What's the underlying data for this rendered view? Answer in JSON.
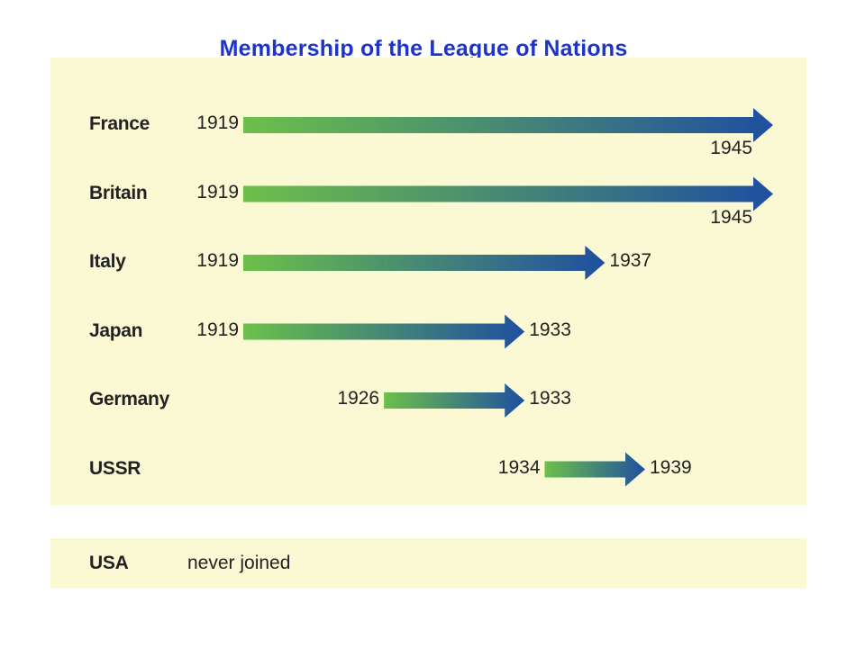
{
  "title": "Membership of the League of Nations",
  "chart_data": {
    "type": "bar",
    "title": "Membership of the League of Nations",
    "xlabel": "",
    "ylabel": "",
    "xlim": [
      1919,
      1945
    ],
    "colors": {
      "start": "#6cc04a",
      "end": "#1f4fa0",
      "panel": "#fbf9d4",
      "title": "#1f35c8"
    },
    "series": [
      {
        "country": "France",
        "joined": 1919,
        "left": 1945,
        "continues": true,
        "start_label": "1919",
        "end_label": "1945"
      },
      {
        "country": "Britain",
        "joined": 1919,
        "left": 1945,
        "continues": true,
        "start_label": "1919",
        "end_label": "1945"
      },
      {
        "country": "Italy",
        "joined": 1919,
        "left": 1937,
        "continues": false,
        "start_label": "1919",
        "end_label": "1937"
      },
      {
        "country": "Japan",
        "joined": 1919,
        "left": 1933,
        "continues": false,
        "start_label": "1919",
        "end_label": "1933"
      },
      {
        "country": "Germany",
        "joined": 1926,
        "left": 1933,
        "continues": false,
        "start_label": "1926",
        "end_label": "1933"
      },
      {
        "country": "USSR",
        "joined": 1934,
        "left": 1939,
        "continues": false,
        "start_label": "1934",
        "end_label": "1939"
      }
    ],
    "never_joined": {
      "country": "USA",
      "note": "never joined"
    }
  }
}
